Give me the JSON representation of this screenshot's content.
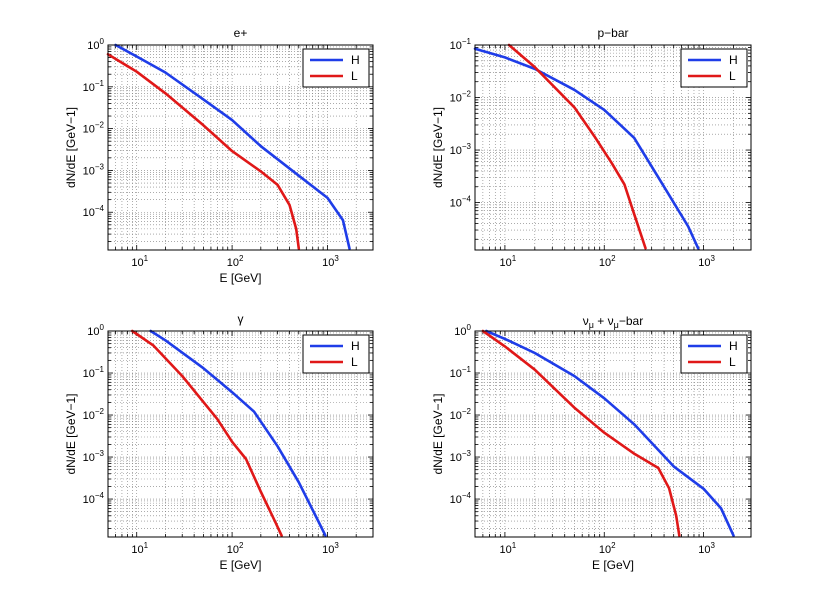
{
  "chart_data": [
    {
      "type": "line",
      "title": "e+",
      "xlabel": "E [GeV]",
      "ylabel": "dN/dE [GeV−1]",
      "xscale": "log",
      "yscale": "log",
      "xlim": [
        5,
        3000
      ],
      "ylim": [
        1.25e-05,
        1
      ],
      "x_ticks": [
        {
          "v": 10,
          "b": "10",
          "e": "1"
        },
        {
          "v": 100,
          "b": "10",
          "e": "2"
        },
        {
          "v": 1000,
          "b": "10",
          "e": "3"
        }
      ],
      "y_ticks": [
        {
          "v": 1,
          "b": "10",
          "e": "0"
        },
        {
          "v": 0.1,
          "b": "10",
          "e": "−1"
        },
        {
          "v": 0.01,
          "b": "10",
          "e": "−2"
        },
        {
          "v": 0.001,
          "b": "10",
          "e": "−3"
        },
        {
          "v": 0.0001,
          "b": "10",
          "e": "−4"
        }
      ],
      "grid": true,
      "legend": "top-right",
      "series": [
        {
          "name": "H",
          "color": "#1f3de8",
          "points": [
            [
              6,
              1
            ],
            [
              10,
              0.53
            ],
            [
              20,
              0.22
            ],
            [
              50,
              0.05
            ],
            [
              100,
              0.016
            ],
            [
              200,
              0.0038
            ],
            [
              500,
              0.00075
            ],
            [
              1000,
              0.00022
            ],
            [
              1450,
              6.5e-05
            ],
            [
              1700,
              1.35e-05
            ]
          ]
        },
        {
          "name": "L",
          "color": "#e01818",
          "points": [
            [
              5,
              0.6
            ],
            [
              10,
              0.23
            ],
            [
              20,
              0.07
            ],
            [
              50,
              0.012
            ],
            [
              100,
              0.0029
            ],
            [
              200,
              0.00095
            ],
            [
              300,
              0.00045
            ],
            [
              400,
              0.00015
            ],
            [
              470,
              4e-05
            ],
            [
              500,
              1.35e-05
            ]
          ]
        }
      ]
    },
    {
      "type": "line",
      "title": "p−bar",
      "xlabel": "",
      "ylabel": "dN/dE [GeV−1]",
      "xscale": "log",
      "yscale": "log",
      "xlim": [
        5,
        3000
      ],
      "ylim": [
        1.25e-05,
        0.1
      ],
      "x_ticks": [
        {
          "v": 10,
          "b": "10",
          "e": "1"
        },
        {
          "v": 100,
          "b": "10",
          "e": "2"
        },
        {
          "v": 1000,
          "b": "10",
          "e": "3"
        }
      ],
      "y_ticks": [
        {
          "v": 0.1,
          "b": "10",
          "e": "−1"
        },
        {
          "v": 0.01,
          "b": "10",
          "e": "−2"
        },
        {
          "v": 0.001,
          "b": "10",
          "e": "−3"
        },
        {
          "v": 0.0001,
          "b": "10",
          "e": "−4"
        }
      ],
      "grid": true,
      "legend": "top-right",
      "series": [
        {
          "name": "H",
          "color": "#1f3de8",
          "points": [
            [
              5,
              0.085
            ],
            [
              10,
              0.058
            ],
            [
              20,
              0.035
            ],
            [
              50,
              0.014
            ],
            [
              100,
              0.0058
            ],
            [
              200,
              0.0017
            ],
            [
              400,
              0.0002
            ],
            [
              700,
              3.5e-05
            ],
            [
              880,
              1.35e-05
            ]
          ]
        },
        {
          "name": "L",
          "color": "#e01818",
          "points": [
            [
              11,
              0.1
            ],
            [
              20,
              0.038
            ],
            [
              50,
              0.0065
            ],
            [
              80,
              0.0018
            ],
            [
              120,
              0.00055
            ],
            [
              160,
              0.00022
            ],
            [
              200,
              6e-05
            ],
            [
              260,
              1.35e-05
            ]
          ]
        }
      ]
    },
    {
      "type": "line",
      "title": "γ",
      "xlabel": "E [GeV]",
      "ylabel": "dN/dE [GeV−1]",
      "xscale": "log",
      "yscale": "log",
      "xlim": [
        5,
        3000
      ],
      "ylim": [
        1.25e-05,
        1
      ],
      "x_ticks": [
        {
          "v": 10,
          "b": "10",
          "e": "1"
        },
        {
          "v": 100,
          "b": "10",
          "e": "2"
        },
        {
          "v": 1000,
          "b": "10",
          "e": "3"
        }
      ],
      "y_ticks": [
        {
          "v": 1,
          "b": "10",
          "e": "0"
        },
        {
          "v": 0.1,
          "b": "10",
          "e": "−1"
        },
        {
          "v": 0.01,
          "b": "10",
          "e": "−2"
        },
        {
          "v": 0.001,
          "b": "10",
          "e": "−3"
        },
        {
          "v": 0.0001,
          "b": "10",
          "e": "−4"
        }
      ],
      "grid": true,
      "legend": "top-right",
      "series": [
        {
          "name": "H",
          "color": "#1f3de8",
          "points": [
            [
              14,
              1
            ],
            [
              20,
              0.6
            ],
            [
              50,
              0.13
            ],
            [
              100,
              0.035
            ],
            [
              170,
              0.012
            ],
            [
              300,
              0.0018
            ],
            [
              500,
              0.00025
            ],
            [
              800,
              3e-05
            ],
            [
              950,
              1.35e-05
            ]
          ]
        },
        {
          "name": "L",
          "color": "#e01818",
          "points": [
            [
              9,
              1
            ],
            [
              15,
              0.45
            ],
            [
              30,
              0.085
            ],
            [
              70,
              0.008
            ],
            [
              100,
              0.0023
            ],
            [
              140,
              0.0009
            ],
            [
              200,
              0.00015
            ],
            [
              280,
              3e-05
            ],
            [
              330,
              1.35e-05
            ]
          ]
        }
      ]
    },
    {
      "type": "line",
      "title": "νμ + νμ−bar",
      "title_parts": {
        "nu": "ν",
        "mu": "μ",
        "plus": " + ",
        "bar": "−bar"
      },
      "xlabel": "E [GeV]",
      "ylabel": "dN/dE [GeV−1]",
      "xscale": "log",
      "yscale": "log",
      "xlim": [
        5,
        3000
      ],
      "ylim": [
        1.25e-05,
        1
      ],
      "x_ticks": [
        {
          "v": 10,
          "b": "10",
          "e": "1"
        },
        {
          "v": 100,
          "b": "10",
          "e": "2"
        },
        {
          "v": 1000,
          "b": "10",
          "e": "3"
        }
      ],
      "y_ticks": [
        {
          "v": 1,
          "b": "10",
          "e": "0"
        },
        {
          "v": 0.1,
          "b": "10",
          "e": "−1"
        },
        {
          "v": 0.01,
          "b": "10",
          "e": "−2"
        },
        {
          "v": 0.001,
          "b": "10",
          "e": "−3"
        },
        {
          "v": 0.0001,
          "b": "10",
          "e": "−4"
        }
      ],
      "grid": true,
      "legend": "top-right",
      "series": [
        {
          "name": "H",
          "color": "#1f3de8",
          "points": [
            [
              6.5,
              1
            ],
            [
              10,
              0.65
            ],
            [
              20,
              0.3
            ],
            [
              50,
              0.085
            ],
            [
              100,
              0.025
            ],
            [
              200,
              0.006
            ],
            [
              500,
              0.0006
            ],
            [
              1000,
              0.000175
            ],
            [
              1500,
              6e-05
            ],
            [
              2000,
              1.35e-05
            ]
          ]
        },
        {
          "name": "L",
          "color": "#e01818",
          "points": [
            [
              6,
              1
            ],
            [
              10,
              0.43
            ],
            [
              20,
              0.12
            ],
            [
              50,
              0.015
            ],
            [
              100,
              0.0038
            ],
            [
              200,
              0.0012
            ],
            [
              350,
              0.00055
            ],
            [
              450,
              0.00018
            ],
            [
              530,
              4e-05
            ],
            [
              570,
              1.35e-05
            ]
          ]
        }
      ]
    }
  ]
}
